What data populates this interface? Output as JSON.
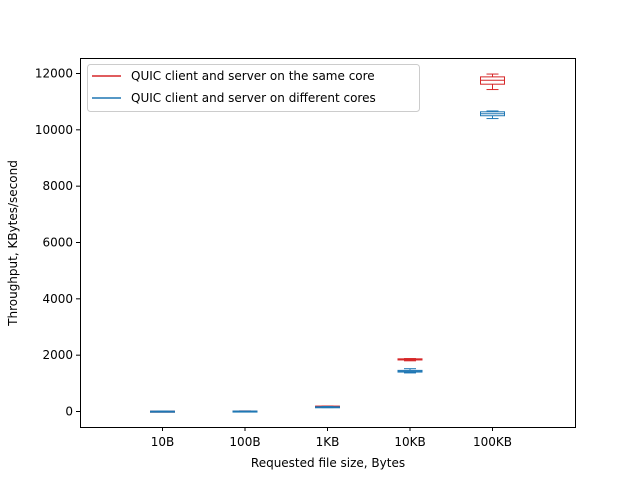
{
  "chart_data": {
    "type": "box",
    "title": "",
    "xlabel": "Requested file size, Bytes",
    "ylabel": "Throughput, KBytes/second",
    "categories": [
      "10B",
      "100B",
      "1KB",
      "10KB",
      "100KB"
    ],
    "ylim": [
      -550,
      12550
    ],
    "yticks": [
      0,
      2000,
      4000,
      6000,
      8000,
      10000,
      12000
    ],
    "grid": false,
    "legend_position": "top-left",
    "series": [
      {
        "name": "QUIC client and server on the same core",
        "color": "#d62728",
        "boxes": [
          {
            "whislo": 5,
            "q1": 8,
            "med": 10,
            "q3": 12,
            "whishi": 15
          },
          {
            "whislo": 8,
            "q1": 12,
            "med": 15,
            "q3": 18,
            "whishi": 22
          },
          {
            "whislo": 170,
            "q1": 178,
            "med": 185,
            "q3": 190,
            "whishi": 196
          },
          {
            "whislo": 1800,
            "q1": 1830,
            "med": 1850,
            "q3": 1870,
            "whishi": 1880
          },
          {
            "whislo": 11430,
            "q1": 11620,
            "med": 11760,
            "q3": 11880,
            "whishi": 11980
          }
        ]
      },
      {
        "name": "QUIC client and server on different cores",
        "color": "#1f77b4",
        "boxes": [
          {
            "whislo": 4,
            "q1": 7,
            "med": 9,
            "q3": 11,
            "whishi": 13
          },
          {
            "whislo": 7,
            "q1": 10,
            "med": 13,
            "q3": 15,
            "whishi": 18
          },
          {
            "whislo": 140,
            "q1": 150,
            "med": 160,
            "q3": 168,
            "whishi": 175
          },
          {
            "whislo": 1370,
            "q1": 1400,
            "med": 1430,
            "q3": 1460,
            "whishi": 1520
          },
          {
            "whislo": 10400,
            "q1": 10500,
            "med": 10570,
            "q3": 10640,
            "whishi": 10670
          }
        ]
      }
    ]
  }
}
